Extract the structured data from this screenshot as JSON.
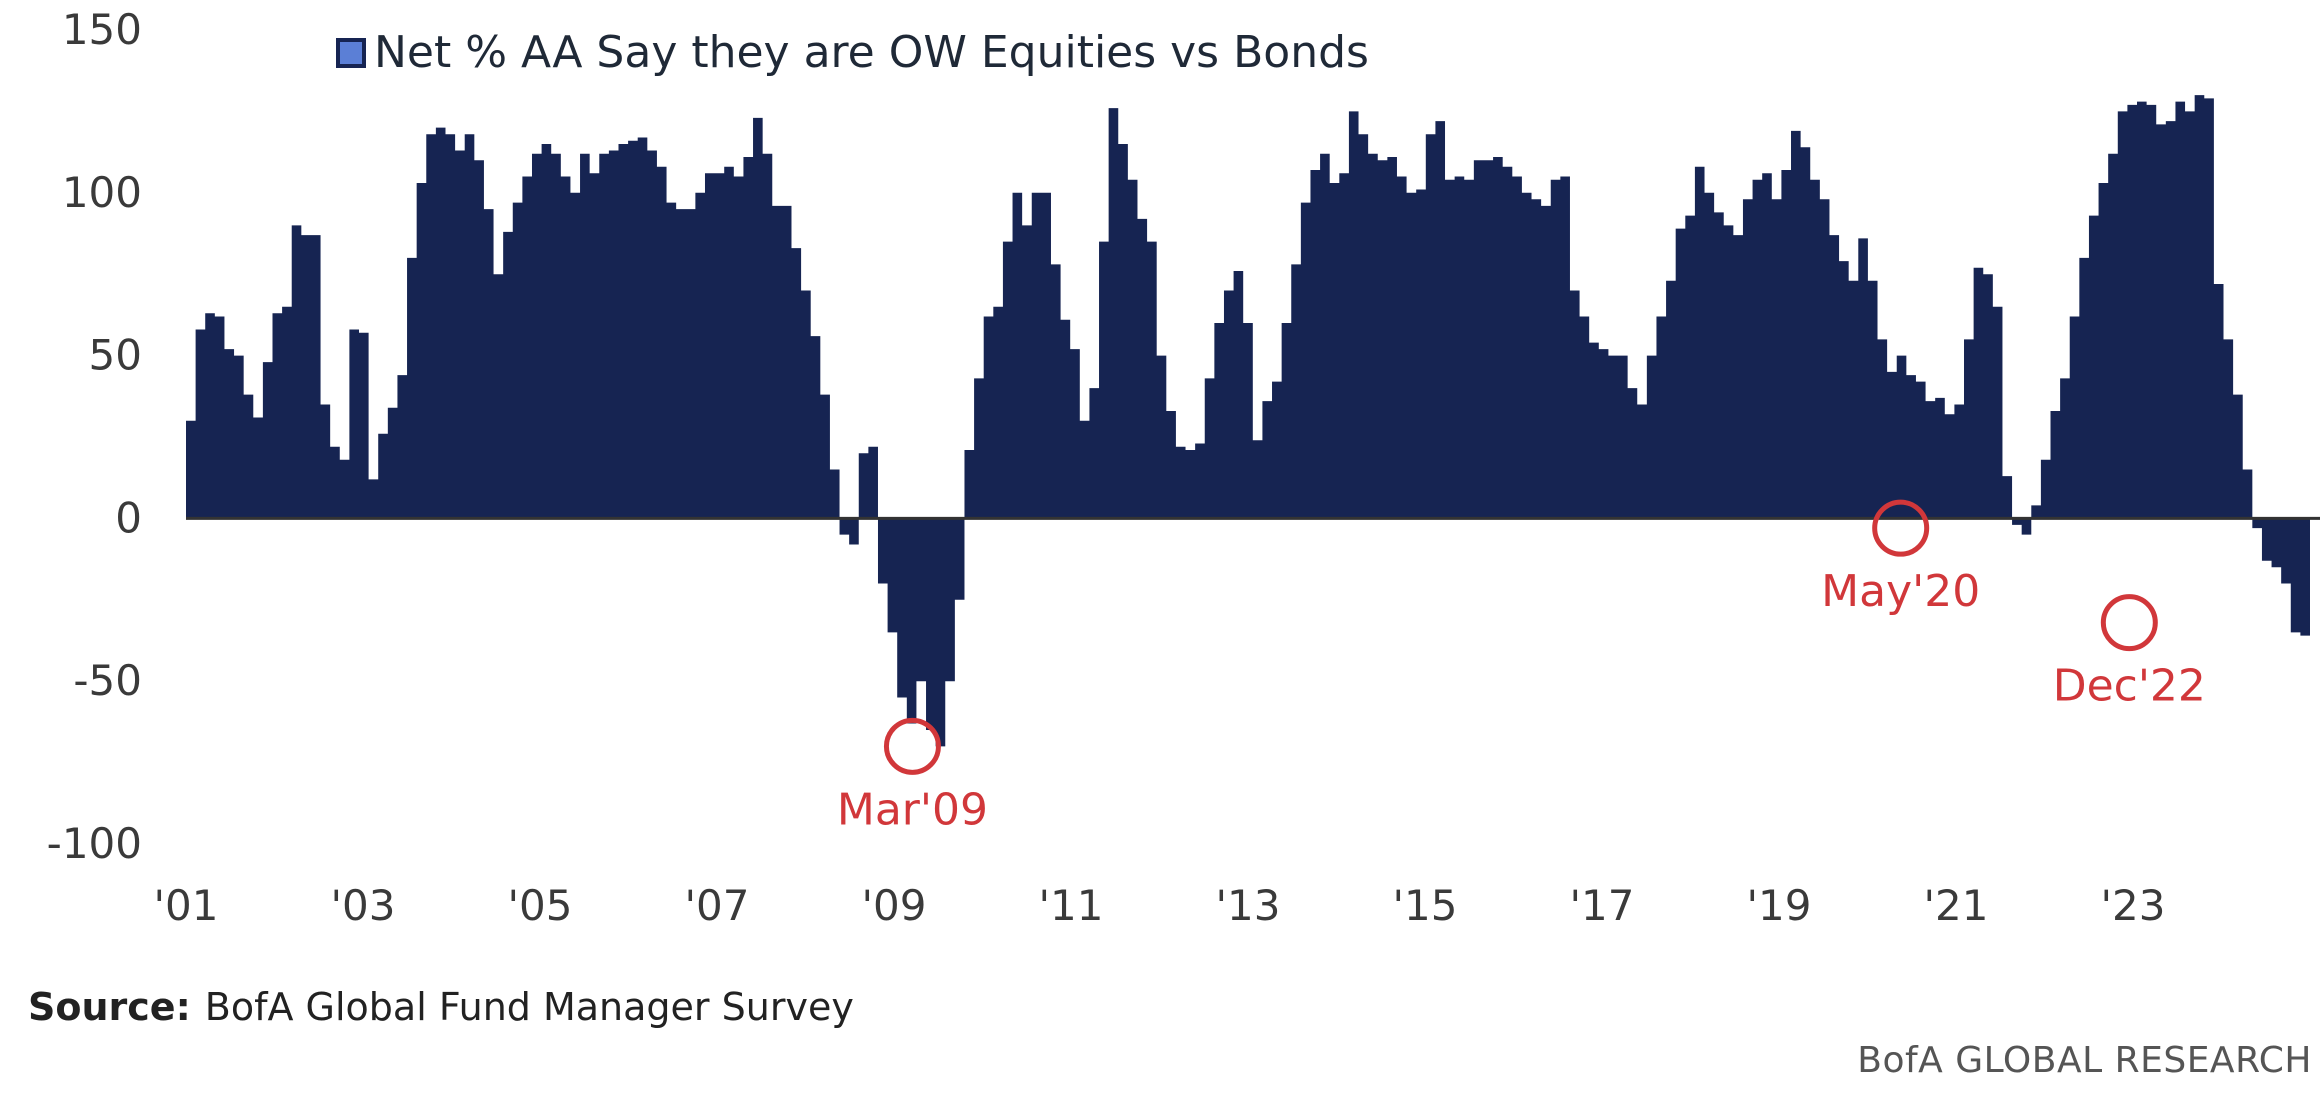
{
  "chart_data": {
    "type": "bar",
    "series": [
      {
        "name": "Net % AA Say they are OW Equities vs Bonds"
      }
    ],
    "x_start": "2001-01",
    "x_end": "2024-12",
    "values": [
      30,
      58,
      63,
      62,
      52,
      50,
      38,
      31,
      48,
      63,
      65,
      90,
      87,
      87,
      35,
      22,
      18,
      58,
      57,
      12,
      26,
      34,
      44,
      80,
      103,
      118,
      120,
      118,
      113,
      118,
      110,
      95,
      75,
      88,
      97,
      105,
      112,
      115,
      112,
      105,
      100,
      112,
      106,
      112,
      113,
      115,
      116,
      117,
      113,
      108,
      97,
      95,
      95,
      100,
      106,
      106,
      108,
      105,
      111,
      123,
      112,
      96,
      96,
      83,
      70,
      56,
      38,
      15,
      -5,
      -8,
      20,
      22,
      -20,
      -35,
      -55,
      -63,
      -50,
      -65,
      -70,
      -50,
      -25,
      21,
      43,
      62,
      65,
      85,
      100,
      90,
      100,
      100,
      78,
      61,
      52,
      30,
      40,
      85,
      126,
      115,
      104,
      92,
      85,
      50,
      33,
      22,
      21,
      23,
      43,
      60,
      70,
      76,
      60,
      24,
      36,
      42,
      60,
      78,
      97,
      107,
      112,
      103,
      106,
      125,
      118,
      112,
      110,
      111,
      105,
      100,
      101,
      118,
      122,
      104,
      105,
      104,
      110,
      110,
      111,
      108,
      105,
      100,
      98,
      96,
      104,
      105,
      70,
      62,
      54,
      52,
      50,
      50,
      40,
      35,
      50,
      62,
      73,
      89,
      93,
      108,
      100,
      94,
      90,
      87,
      98,
      104,
      106,
      98,
      107,
      119,
      114,
      104,
      98,
      87,
      79,
      73,
      86,
      73,
      55,
      45,
      50,
      44,
      42,
      36,
      37,
      32,
      35,
      55,
      77,
      75,
      65,
      13,
      -2,
      -5,
      4,
      18,
      33,
      43,
      62,
      80,
      93,
      103,
      112,
      125,
      127,
      128,
      127,
      121,
      122,
      128,
      125,
      130,
      129,
      72,
      55,
      38,
      15,
      -3,
      -13,
      -15,
      -20,
      -35,
      -36
    ],
    "ylim": [
      -100,
      150
    ],
    "yticks": [
      150,
      100,
      50,
      0,
      -50,
      -100
    ],
    "xtick_labels": [
      "'01",
      "'03",
      "'05",
      "'07",
      "'09",
      "'11",
      "'13",
      "'15",
      "'17",
      "'19",
      "'21",
      "'23"
    ],
    "annotations": [
      {
        "label": "Mar'09",
        "date": "2009-03",
        "value": -70
      },
      {
        "label": "May'20",
        "date": "2020-05",
        "value": -3
      },
      {
        "label": "Dec'22",
        "date": "2022-12",
        "value": -32
      }
    ],
    "legend_position": "top-left",
    "grid": false
  },
  "colors": {
    "bar": "#162452",
    "annotation": "#d1373a",
    "legend_swatch_fill": "#5b7fd6"
  },
  "source": {
    "label": "Source:",
    "text": "BofA Global Fund Manager Survey"
  },
  "brand": "BofA GLOBAL RESEARCH"
}
